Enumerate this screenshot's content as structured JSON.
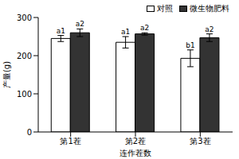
{
  "chart_data": {
    "type": "bar",
    "x_label": "连作茬数",
    "y_label": "产量(g)",
    "categories": [
      "第1茬",
      "第2茬",
      "第3茬"
    ],
    "series": [
      {
        "name": "对照",
        "color": "#ffffff",
        "values": [
          245,
          235,
          193
        ],
        "errors": [
          8,
          15,
          22
        ],
        "letters": [
          "a1",
          "a1",
          "b1"
        ]
      },
      {
        "name": "微生物肥料",
        "color": "#333333",
        "values": [
          260,
          257,
          247
        ],
        "errors": [
          10,
          3,
          10
        ],
        "letters": [
          "a2",
          "a2",
          "a2"
        ]
      }
    ],
    "ylim": [
      0,
      300
    ],
    "yticks": [
      0,
      100,
      200,
      300
    ],
    "grid": false,
    "legend": "upper right"
  }
}
